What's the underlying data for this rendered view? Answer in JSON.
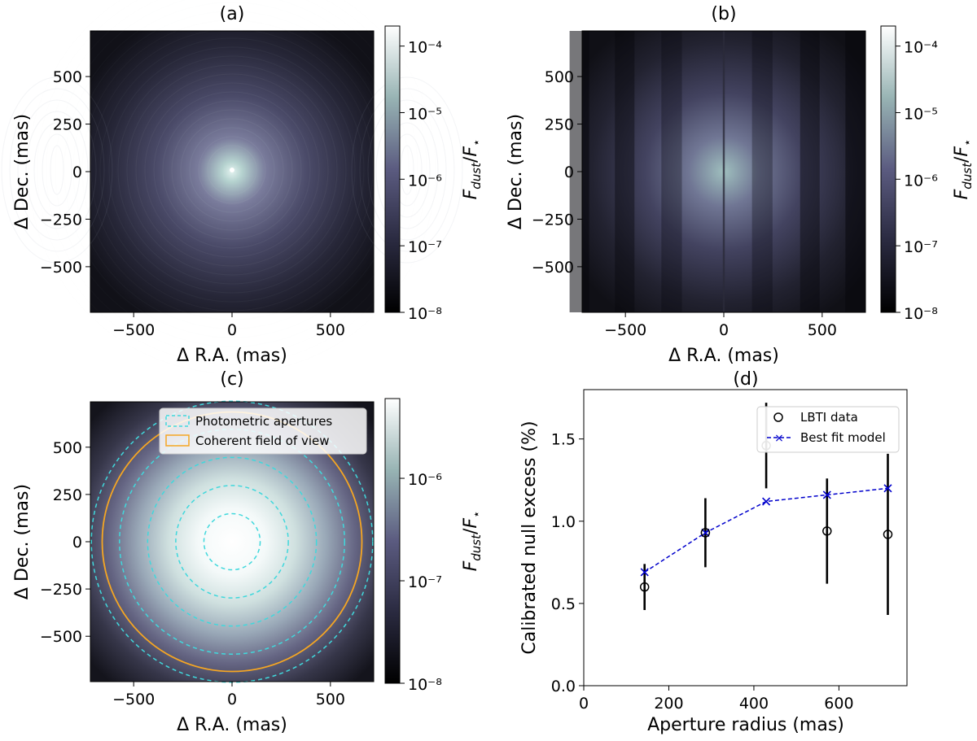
{
  "chart_data": [
    {
      "panel": "a",
      "type": "heatmap",
      "title": "(a)",
      "xlabel": "Δ R.A. (mas)",
      "ylabel": "Δ Dec. (mas)",
      "xlim": [
        -720,
        720
      ],
      "ylim": [
        -740,
        740
      ],
      "xticks": [
        -500,
        0,
        500
      ],
      "yticks": [
        500,
        250,
        0,
        -250,
        -500
      ],
      "pattern": "central disk emission with interference fringes",
      "colorbar": {
        "label": "F_dust/F_⋆",
        "scale": "log",
        "range": [
          1e-08,
          0.0002
        ],
        "ticks": [
          "10⁻⁴",
          "10⁻⁵",
          "10⁻⁶",
          "10⁻⁷",
          "10⁻⁸"
        ],
        "tick_values": [
          -4,
          -5,
          -6,
          -7,
          -8
        ]
      }
    },
    {
      "panel": "b",
      "type": "heatmap",
      "title": "(b)",
      "xlabel": "Δ R.A. (mas)",
      "ylabel": "Δ Dec. (mas)",
      "xlim": [
        -720,
        720
      ],
      "ylim": [
        -740,
        740
      ],
      "xticks": [
        -500,
        0,
        500
      ],
      "yticks": [
        500,
        250,
        0,
        -250,
        -500
      ],
      "pattern": "disk emission modulated by vertical nulling fringes",
      "colorbar": {
        "label": "F_dust/F_⋆",
        "scale": "log",
        "range": [
          1e-08,
          0.0002
        ],
        "ticks": [
          "10⁻⁴",
          "10⁻⁵",
          "10⁻⁶",
          "10⁻⁷",
          "10⁻⁸"
        ],
        "tick_values": [
          -4,
          -5,
          -6,
          -7,
          -8
        ]
      }
    },
    {
      "panel": "c",
      "type": "heatmap",
      "title": "(c)",
      "xlabel": "Δ R.A. (mas)",
      "ylabel": "Δ Dec. (mas)",
      "xlim": [
        -720,
        720
      ],
      "ylim": [
        -740,
        740
      ],
      "xticks": [
        -500,
        0,
        500
      ],
      "yticks": [
        500,
        250,
        0,
        -250,
        -500
      ],
      "aperture_radii": [
        143,
        286,
        429,
        572,
        715
      ],
      "coherent_fov_radius": 660,
      "legend": [
        "Photometric apertures",
        "Coherent field of view"
      ],
      "legend_position": "top-right",
      "colors": {
        "apertures": "#40d8dc",
        "fov": "#f5a623"
      },
      "colorbar": {
        "label": "F_dust/F_⋆",
        "scale": "log",
        "range": [
          1e-08,
          6e-06
        ],
        "ticks": [
          "10⁻⁶",
          "10⁻⁷",
          "10⁻⁸"
        ],
        "tick_values": [
          -6,
          -7,
          -8
        ]
      }
    },
    {
      "panel": "d",
      "type": "scatter",
      "title": "(d)",
      "xlabel": "Aperture radius (mas)",
      "ylabel": "Calibrated null excess (%)",
      "xlim": [
        0,
        760
      ],
      "ylim": [
        0,
        1.8
      ],
      "xticks": [
        0,
        200,
        400,
        600
      ],
      "yticks": [
        0.0,
        0.5,
        1.0,
        1.5
      ],
      "legend_position": "top-right",
      "series": [
        {
          "name": "LBTI data",
          "marker": "circle",
          "color": "#000000",
          "x": [
            143,
            286,
            429,
            572,
            715
          ],
          "y": [
            0.6,
            0.93,
            1.46,
            0.94,
            0.92
          ],
          "yerr": [
            0.14,
            0.21,
            0.26,
            0.32,
            0.49
          ]
        },
        {
          "name": "Best fit model",
          "marker": "x",
          "linestyle": "dashed",
          "color": "#0000cc",
          "x": [
            143,
            286,
            429,
            572,
            715
          ],
          "y": [
            0.69,
            0.93,
            1.12,
            1.16,
            1.2
          ]
        }
      ]
    }
  ]
}
